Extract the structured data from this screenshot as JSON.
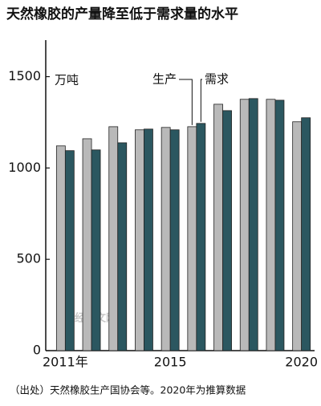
{
  "chart_data": {
    "type": "bar",
    "title": "天然橡胶的产量降至低于需求量的水平",
    "unit_label": "万吨",
    "categories": [
      "2011年",
      null,
      null,
      null,
      "2015",
      null,
      null,
      null,
      null,
      "2020"
    ],
    "series": [
      {
        "name": "生产",
        "color": "#b9b9b9",
        "values": [
          1121,
          1160,
          1226,
          1209,
          1222,
          1226,
          1349,
          1376,
          1376,
          1253
        ]
      },
      {
        "name": "需求",
        "color": "#2b5760",
        "values": [
          1095,
          1099,
          1138,
          1213,
          1209,
          1244,
          1314,
          1380,
          1371,
          1275
        ]
      }
    ],
    "ylim": [
      0,
      1700
    ],
    "yticks": [
      0,
      500,
      1000,
      1500
    ],
    "watermark": "日经中文网",
    "source": "（出处）天然橡胶生产国协会等。2020年为推算数据"
  }
}
